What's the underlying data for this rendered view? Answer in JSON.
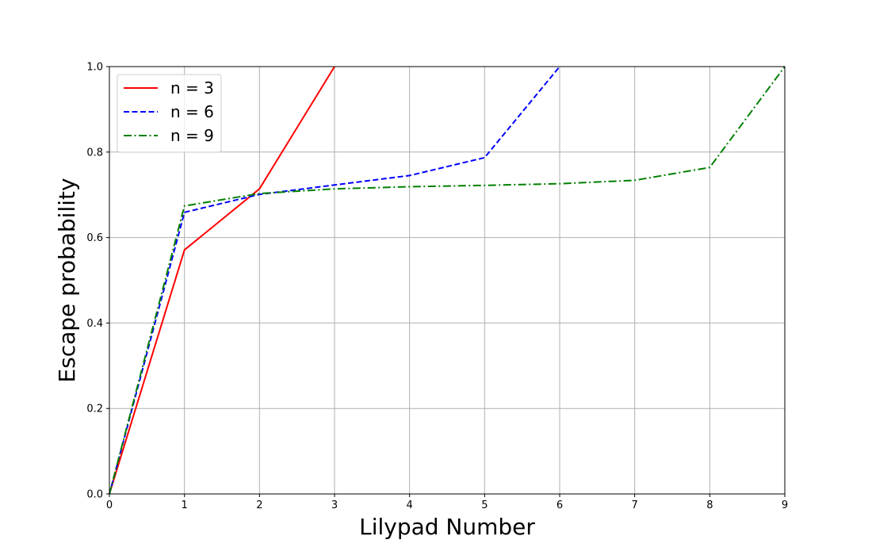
{
  "chart_data": {
    "type": "line",
    "xlabel": "Lilypad Number",
    "ylabel": "Escape probability",
    "xlim": [
      0,
      9
    ],
    "ylim": [
      0,
      1.0
    ],
    "xticks": [
      "0",
      "1",
      "2",
      "3",
      "4",
      "5",
      "6",
      "7",
      "8",
      "9"
    ],
    "yticks": [
      "0.0",
      "0.2",
      "0.4",
      "0.6",
      "0.8",
      "1.0"
    ],
    "grid": true,
    "legend_position": "upper-left",
    "series": [
      {
        "name": "n = 3",
        "color": "#ff0000",
        "style": "solid",
        "x": [
          0,
          1,
          2,
          3
        ],
        "y": [
          0.0,
          0.571,
          0.714,
          1.0
        ]
      },
      {
        "name": "n = 6",
        "color": "#0000ff",
        "style": "dashed",
        "x": [
          0,
          1,
          2,
          3,
          4,
          5,
          6
        ],
        "y": [
          0.0,
          0.659,
          0.701,
          0.723,
          0.745,
          0.787,
          1.0
        ]
      },
      {
        "name": "n = 9",
        "color": "#008000",
        "style": "dashdot",
        "x": [
          0,
          1,
          2,
          3,
          4,
          5,
          6,
          7,
          8,
          9
        ],
        "y": [
          0.0,
          0.674,
          0.703,
          0.714,
          0.719,
          0.722,
          0.726,
          0.734,
          0.764,
          1.0
        ]
      }
    ]
  }
}
